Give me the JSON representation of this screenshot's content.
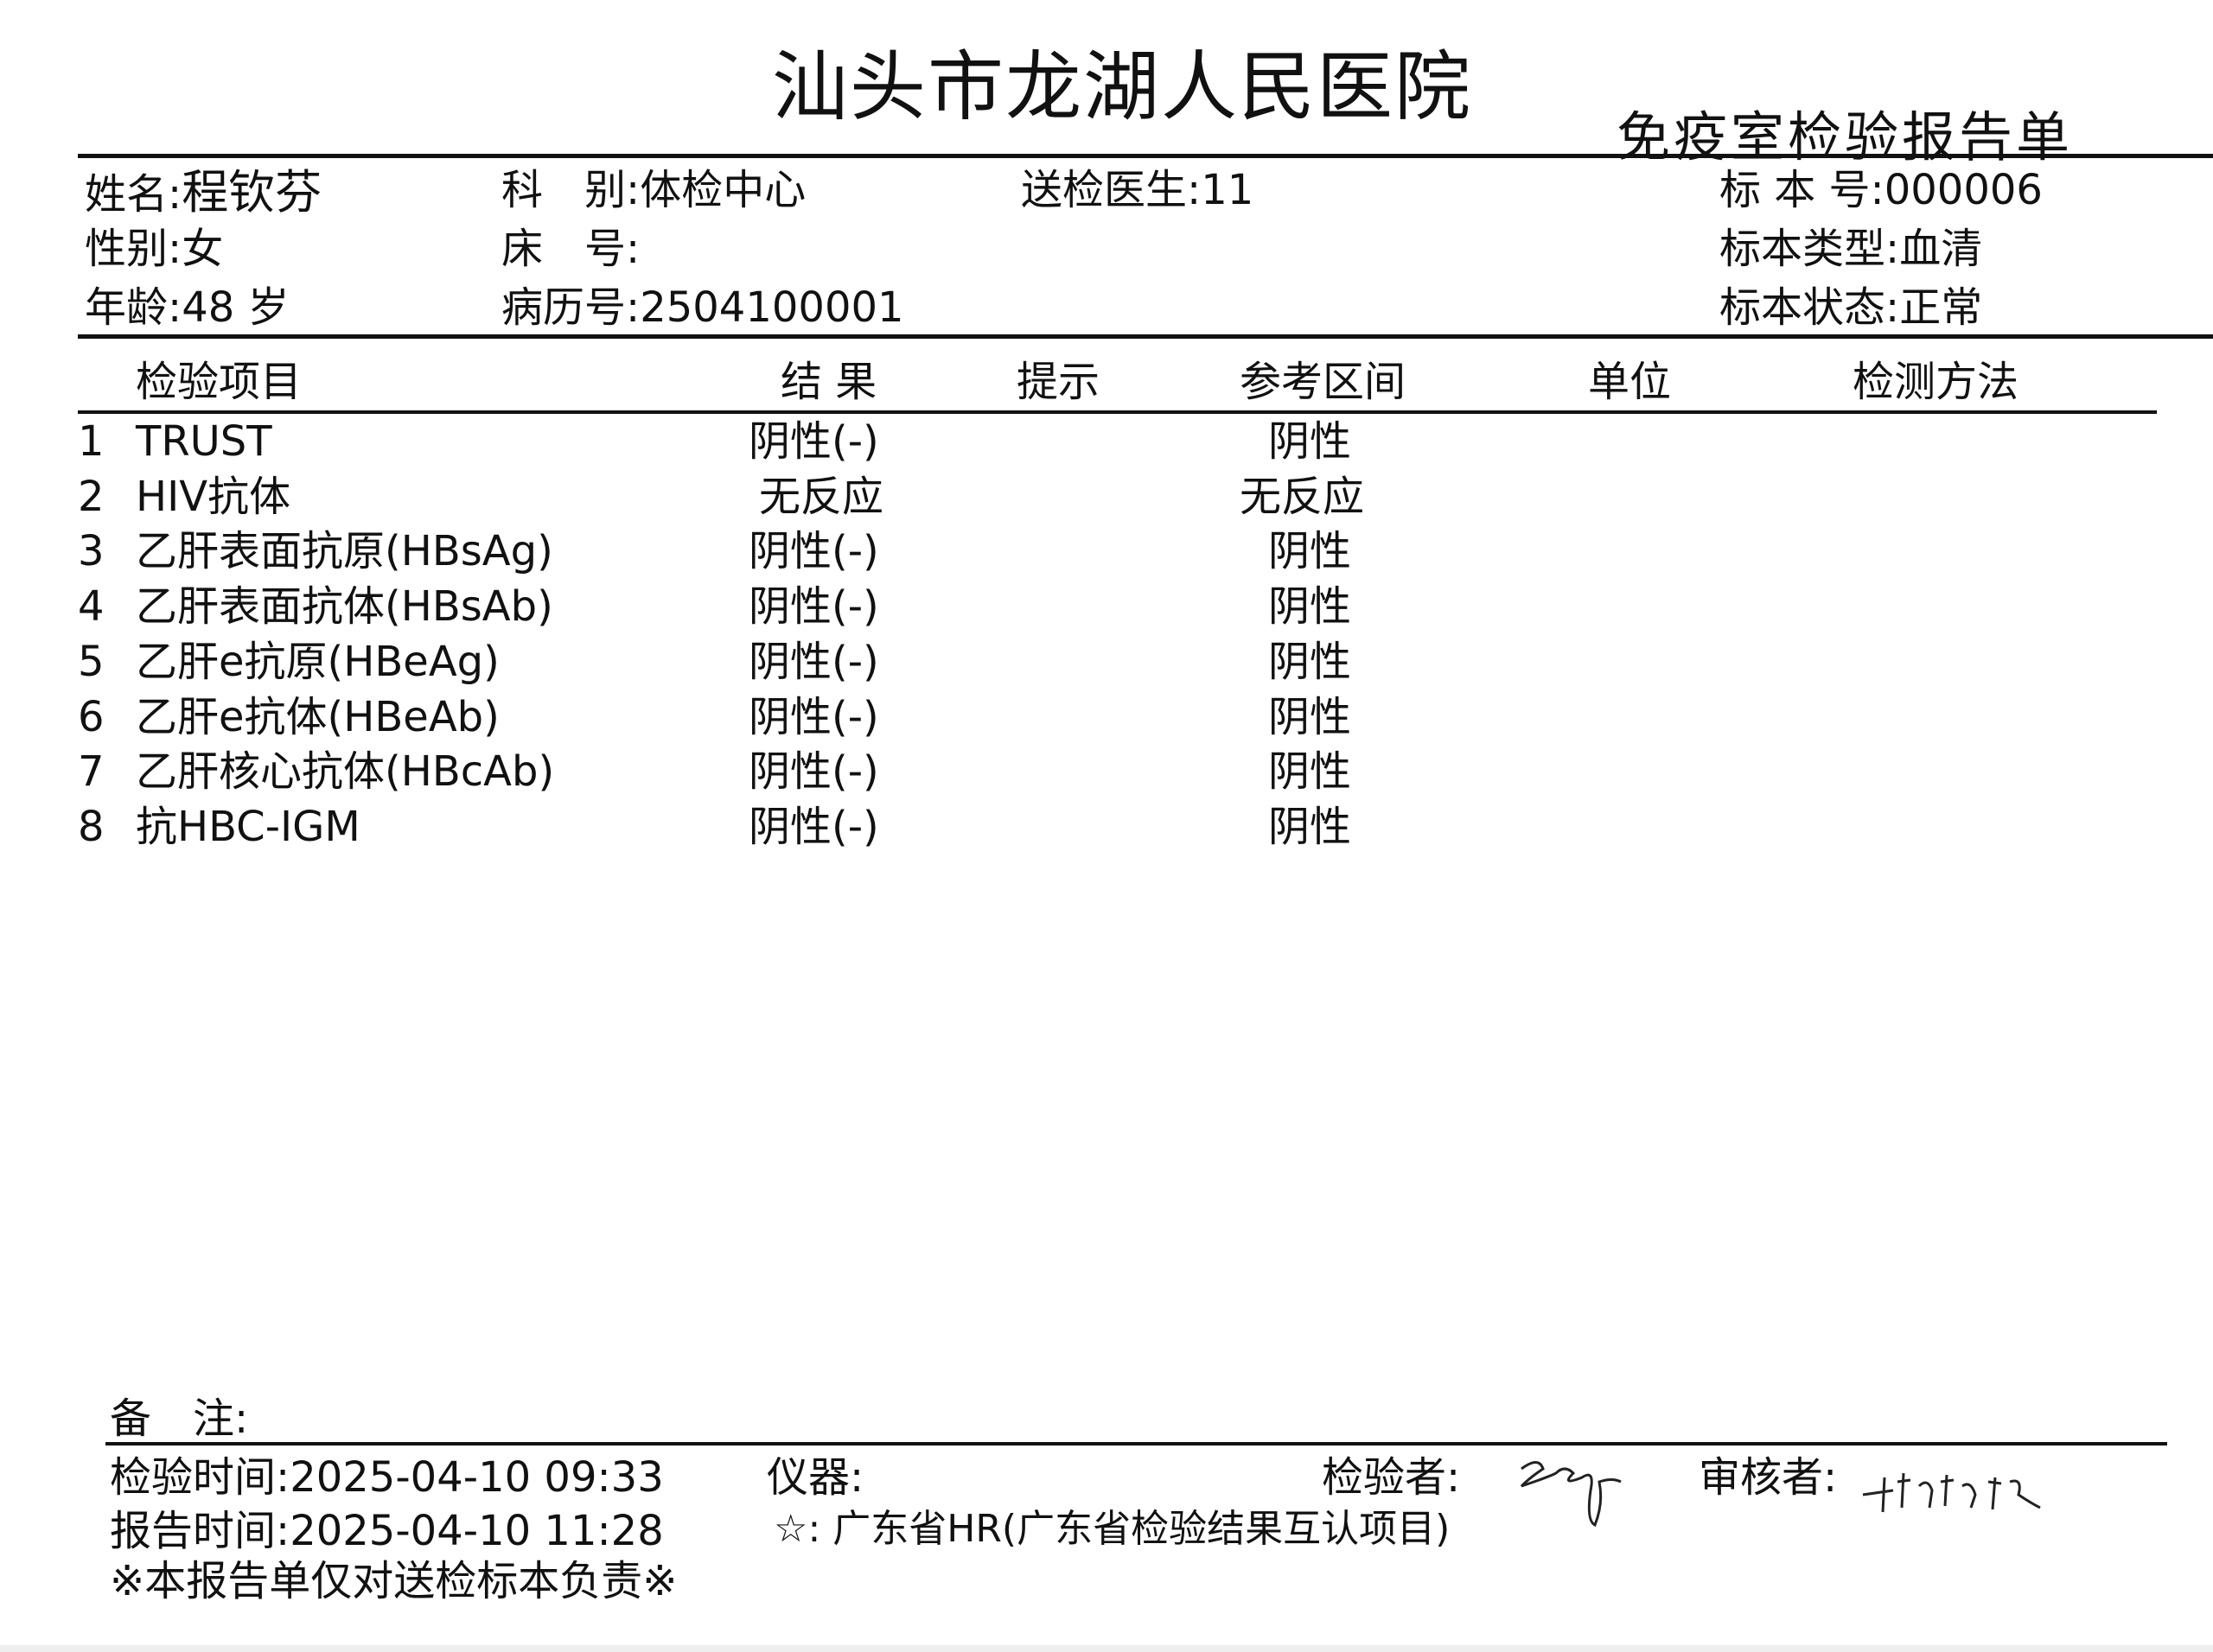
{
  "header": {
    "hospital": "汕头市龙湖人民医院",
    "report_title": "免疫室检验报告单"
  },
  "patient": {
    "name_label": "姓名:",
    "name": "程钦芬",
    "gender_label": "性别:",
    "gender": "女",
    "age_label": "年龄:",
    "age": "48 岁",
    "dept_label": "科　别:",
    "dept": "体检中心",
    "bed_label": "床　号:",
    "bed": "",
    "record_label": "病历号:",
    "record": "2504100001",
    "doctor_label": "送检医生:",
    "doctor": "11",
    "specimen_no_label": "标 本 号:",
    "specimen_no": "000006",
    "specimen_type_label": "标本类型:",
    "specimen_type": "血清",
    "specimen_status_label": "标本状态:",
    "specimen_status": "正常"
  },
  "table": {
    "columns": [
      "检验项目",
      "结 果",
      "提示",
      "参考区间",
      "单位",
      "检测方法"
    ],
    "rows": [
      {
        "no": "1",
        "item": "TRUST",
        "result": "阴性(-)",
        "ref": "阴性"
      },
      {
        "no": "2",
        "item": "HIV抗体",
        "result": "无反应",
        "ref": "无反应"
      },
      {
        "no": "3",
        "item": "乙肝表面抗原(HBsAg)",
        "result": "阴性(-)",
        "ref": "阴性"
      },
      {
        "no": "4",
        "item": "乙肝表面抗体(HBsAb)",
        "result": "阴性(-)",
        "ref": "阴性"
      },
      {
        "no": "5",
        "item": "乙肝e抗原(HBeAg)",
        "result": "阴性(-)",
        "ref": "阴性"
      },
      {
        "no": "6",
        "item": "乙肝e抗体(HBeAb)",
        "result": "阴性(-)",
        "ref": "阴性"
      },
      {
        "no": "7",
        "item": "乙肝核心抗体(HBcAb)",
        "result": "阴性(-)",
        "ref": "阴性"
      },
      {
        "no": "8",
        "item": "抗HBC-IGM",
        "result": "阴性(-)",
        "ref": "阴性"
      }
    ]
  },
  "footer": {
    "remark_label": "备　注:",
    "test_time_label": "检验时间:",
    "test_time": "2025-04-10 09:33",
    "report_time_label": "报告时间:",
    "report_time": "2025-04-10 11:28",
    "instrument_label": "仪器:",
    "note_star": "☆: 广东省HR(广东省检验结果互认项目)",
    "disclaimer": "※本报告单仅对送检标本负责※",
    "tester_label": "检验者:",
    "reviewer_label": "审核者:"
  }
}
